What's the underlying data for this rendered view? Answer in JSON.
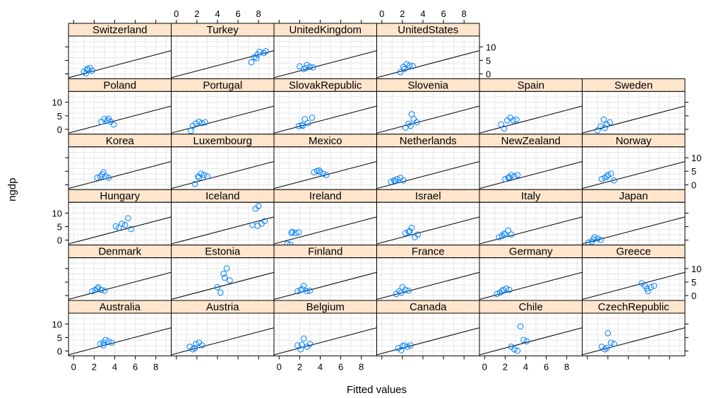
{
  "chart_data": {
    "type": "scatter",
    "xlabel": "Fitted values",
    "ylabel": "ngdp",
    "xlim": [
      -0.5,
      9.5
    ],
    "ylim": [
      -1.8,
      14
    ],
    "x_ticks": [
      0,
      2,
      4,
      6,
      8
    ],
    "y_ticks": [
      0,
      5,
      10
    ],
    "grid": true,
    "reference_line": {
      "intercept": -0.9,
      "slope": 1.0
    },
    "colors": {
      "points": "#0080ff",
      "strip": "#ffe5cc",
      "grid": "#e6e6e6",
      "line": "#000000"
    },
    "panels": [
      {
        "label": "Switzerland",
        "row": 0,
        "col": 0,
        "points": [
          [
            1.0,
            0.8
          ],
          [
            1.2,
            0.2
          ],
          [
            1.4,
            1.6
          ],
          [
            1.6,
            2.2
          ],
          [
            1.8,
            1.2
          ],
          [
            1.3,
            1.8
          ]
        ]
      },
      {
        "label": "Turkey",
        "row": 0,
        "col": 1,
        "points": [
          [
            7.3,
            4.3
          ],
          [
            7.6,
            6.2
          ],
          [
            7.9,
            7.2
          ],
          [
            8.1,
            8.2
          ],
          [
            8.5,
            7.7
          ],
          [
            8.7,
            8.4
          ],
          [
            7.8,
            5.8
          ]
        ]
      },
      {
        "label": "UnitedKingdom",
        "row": 0,
        "col": 2,
        "points": [
          [
            2.0,
            2.8
          ],
          [
            2.4,
            1.8
          ],
          [
            2.7,
            3.3
          ],
          [
            3.0,
            2.6
          ],
          [
            3.3,
            2.4
          ],
          [
            2.6,
            2.2
          ]
        ]
      },
      {
        "label": "UnitedStates",
        "row": 0,
        "col": 3,
        "points": [
          [
            1.8,
            0.6
          ],
          [
            2.1,
            2.6
          ],
          [
            2.4,
            3.6
          ],
          [
            2.7,
            3.1
          ],
          [
            3.0,
            2.9
          ],
          [
            2.2,
            1.8
          ]
        ]
      },
      {
        "label": "Poland",
        "row": 1,
        "col": 0,
        "points": [
          [
            2.7,
            2.8
          ],
          [
            3.0,
            3.8
          ],
          [
            3.3,
            3.3
          ],
          [
            3.6,
            2.8
          ],
          [
            3.9,
            1.8
          ],
          [
            3.4,
            4.0
          ]
        ]
      },
      {
        "label": "Portugal",
        "row": 1,
        "col": 1,
        "points": [
          [
            1.4,
            -0.6
          ],
          [
            1.6,
            1.3
          ],
          [
            1.9,
            2.2
          ],
          [
            2.2,
            2.8
          ],
          [
            2.5,
            2.3
          ],
          [
            2.8,
            2.6
          ]
        ]
      },
      {
        "label": "SlovakRepublic",
        "row": 1,
        "col": 2,
        "points": [
          [
            1.9,
            1.2
          ],
          [
            2.2,
            1.6
          ],
          [
            2.5,
            3.8
          ],
          [
            2.8,
            2.3
          ],
          [
            3.2,
            4.3
          ],
          [
            2.3,
            1.3
          ]
        ]
      },
      {
        "label": "Slovenia",
        "row": 1,
        "col": 3,
        "points": [
          [
            2.3,
            0.6
          ],
          [
            2.6,
            2.1
          ],
          [
            2.9,
            5.6
          ],
          [
            3.1,
            3.8
          ],
          [
            3.4,
            2.6
          ],
          [
            2.8,
            1.3
          ]
        ]
      },
      {
        "label": "Spain",
        "row": 1,
        "col": 4,
        "points": [
          [
            1.6,
            1.8
          ],
          [
            1.9,
            0.3
          ],
          [
            2.2,
            3.3
          ],
          [
            2.5,
            4.3
          ],
          [
            2.8,
            3.3
          ],
          [
            3.1,
            3.6
          ]
        ]
      },
      {
        "label": "Sweden",
        "row": 1,
        "col": 5,
        "points": [
          [
            1.0,
            -0.4
          ],
          [
            1.3,
            1.1
          ],
          [
            1.6,
            3.6
          ],
          [
            1.9,
            1.8
          ],
          [
            2.2,
            2.6
          ],
          [
            1.7,
            0.5
          ]
        ]
      },
      {
        "label": "Korea",
        "row": 2,
        "col": 0,
        "points": [
          [
            2.3,
            2.6
          ],
          [
            2.6,
            3.1
          ],
          [
            2.9,
            4.6
          ],
          [
            3.1,
            3.1
          ],
          [
            3.4,
            2.6
          ],
          [
            2.8,
            3.8
          ]
        ]
      },
      {
        "label": "Luxembourg",
        "row": 2,
        "col": 1,
        "points": [
          [
            1.8,
            0.3
          ],
          [
            2.1,
            3.1
          ],
          [
            2.4,
            4.1
          ],
          [
            2.7,
            3.6
          ],
          [
            3.0,
            3.1
          ],
          [
            2.2,
            2.6
          ]
        ]
      },
      {
        "label": "Mexico",
        "row": 2,
        "col": 2,
        "points": [
          [
            3.4,
            4.6
          ],
          [
            3.7,
            5.1
          ],
          [
            4.0,
            4.6
          ],
          [
            4.3,
            4.1
          ],
          [
            4.6,
            3.6
          ],
          [
            3.9,
            5.3
          ]
        ]
      },
      {
        "label": "Netherlands",
        "row": 2,
        "col": 3,
        "points": [
          [
            0.9,
            1.1
          ],
          [
            1.2,
            1.6
          ],
          [
            1.5,
            2.1
          ],
          [
            1.8,
            2.6
          ],
          [
            2.1,
            1.6
          ],
          [
            1.3,
            1.3
          ]
        ]
      },
      {
        "label": "NewZealand",
        "row": 2,
        "col": 4,
        "points": [
          [
            2.0,
            2.1
          ],
          [
            2.3,
            2.6
          ],
          [
            2.6,
            3.6
          ],
          [
            2.9,
            3.1
          ],
          [
            3.2,
            3.6
          ],
          [
            2.4,
            2.8
          ]
        ]
      },
      {
        "label": "Norway",
        "row": 2,
        "col": 5,
        "points": [
          [
            1.4,
            2.1
          ],
          [
            1.7,
            2.6
          ],
          [
            2.0,
            3.6
          ],
          [
            2.3,
            4.1
          ],
          [
            2.6,
            1.6
          ],
          [
            1.9,
            3.0
          ]
        ]
      },
      {
        "label": "Hungary",
        "row": 3,
        "col": 0,
        "points": [
          [
            4.1,
            5.1
          ],
          [
            4.4,
            4.6
          ],
          [
            4.7,
            6.1
          ],
          [
            5.0,
            5.6
          ],
          [
            5.3,
            8.1
          ],
          [
            5.6,
            4.1
          ]
        ]
      },
      {
        "label": "Iceland",
        "row": 3,
        "col": 1,
        "points": [
          [
            7.4,
            5.6
          ],
          [
            7.7,
            11.6
          ],
          [
            8.0,
            12.6
          ],
          [
            8.3,
            6.1
          ],
          [
            8.6,
            7.1
          ],
          [
            7.9,
            5.3
          ]
        ]
      },
      {
        "label": "Ireland",
        "row": 3,
        "col": 2,
        "points": [
          [
            0.8,
            -1.4
          ],
          [
            1.1,
            -1.6
          ],
          [
            1.3,
            3.1
          ],
          [
            1.6,
            2.6
          ],
          [
            1.9,
            2.9
          ],
          [
            1.2,
            2.7
          ]
        ]
      },
      {
        "label": "Israel",
        "row": 3,
        "col": 3,
        "points": [
          [
            2.3,
            2.6
          ],
          [
            2.6,
            3.1
          ],
          [
            2.9,
            4.6
          ],
          [
            3.2,
            1.1
          ],
          [
            3.5,
            2.1
          ],
          [
            2.7,
            3.3
          ]
        ]
      },
      {
        "label": "Italy",
        "row": 3,
        "col": 4,
        "points": [
          [
            1.4,
            1.1
          ],
          [
            1.7,
            1.6
          ],
          [
            2.0,
            2.1
          ],
          [
            2.3,
            3.6
          ],
          [
            2.6,
            2.1
          ],
          [
            1.9,
            2.4
          ]
        ]
      },
      {
        "label": "Japan",
        "row": 3,
        "col": 5,
        "points": [
          [
            0.1,
            -0.9
          ],
          [
            0.4,
            -0.6
          ],
          [
            0.7,
            1.1
          ],
          [
            1.0,
            0.6
          ],
          [
            1.3,
            0.1
          ],
          [
            0.6,
            0.3
          ]
        ]
      },
      {
        "label": "Denmark",
        "row": 4,
        "col": 0,
        "points": [
          [
            1.8,
            1.6
          ],
          [
            2.1,
            2.1
          ],
          [
            2.4,
            3.1
          ],
          [
            2.7,
            2.1
          ],
          [
            3.0,
            1.8
          ],
          [
            2.3,
            2.6
          ]
        ]
      },
      {
        "label": "Estonia",
        "row": 4,
        "col": 1,
        "points": [
          [
            4.0,
            3.1
          ],
          [
            4.3,
            1.1
          ],
          [
            4.6,
            8.1
          ],
          [
            4.9,
            10.1
          ],
          [
            5.2,
            5.6
          ],
          [
            4.7,
            6.6
          ]
        ]
      },
      {
        "label": "Finland",
        "row": 4,
        "col": 2,
        "points": [
          [
            1.8,
            1.6
          ],
          [
            2.1,
            2.1
          ],
          [
            2.4,
            3.6
          ],
          [
            2.7,
            1.6
          ],
          [
            3.0,
            1.8
          ],
          [
            2.3,
            2.3
          ]
        ]
      },
      {
        "label": "France",
        "row": 4,
        "col": 3,
        "points": [
          [
            1.4,
            0.6
          ],
          [
            1.7,
            1.6
          ],
          [
            2.0,
            3.1
          ],
          [
            2.3,
            2.1
          ],
          [
            2.6,
            1.8
          ],
          [
            1.9,
            1.1
          ]
        ]
      },
      {
        "label": "Germany",
        "row": 4,
        "col": 4,
        "points": [
          [
            1.2,
            0.6
          ],
          [
            1.5,
            1.1
          ],
          [
            1.8,
            2.1
          ],
          [
            2.1,
            2.6
          ],
          [
            2.4,
            2.1
          ],
          [
            1.7,
            1.6
          ]
        ]
      },
      {
        "label": "Greece",
        "row": 4,
        "col": 5,
        "points": [
          [
            5.3,
            4.6
          ],
          [
            5.6,
            3.6
          ],
          [
            5.9,
            1.6
          ],
          [
            6.2,
            3.1
          ],
          [
            6.5,
            3.6
          ],
          [
            5.8,
            2.6
          ]
        ]
      },
      {
        "label": "Australia",
        "row": 5,
        "col": 0,
        "points": [
          [
            2.6,
            2.6
          ],
          [
            2.9,
            3.1
          ],
          [
            3.1,
            4.1
          ],
          [
            3.4,
            3.6
          ],
          [
            3.7,
            3.1
          ],
          [
            2.9,
            2.1
          ]
        ]
      },
      {
        "label": "Austria",
        "row": 5,
        "col": 1,
        "points": [
          [
            1.3,
            1.6
          ],
          [
            1.6,
            0.6
          ],
          [
            1.9,
            2.6
          ],
          [
            2.2,
            3.1
          ],
          [
            2.5,
            2.1
          ],
          [
            1.8,
            1.1
          ]
        ]
      },
      {
        "label": "Belgium",
        "row": 5,
        "col": 2,
        "points": [
          [
            1.8,
            2.1
          ],
          [
            2.1,
            0.6
          ],
          [
            2.4,
            4.6
          ],
          [
            2.7,
            1.6
          ],
          [
            3.0,
            2.6
          ],
          [
            2.2,
            2.3
          ]
        ]
      },
      {
        "label": "Canada",
        "row": 5,
        "col": 3,
        "points": [
          [
            1.6,
            1.1
          ],
          [
            1.9,
            0.3
          ],
          [
            2.2,
            2.1
          ],
          [
            2.5,
            1.6
          ],
          [
            2.8,
            2.1
          ],
          [
            2.0,
            1.8
          ]
        ]
      },
      {
        "label": "Chile",
        "row": 5,
        "col": 4,
        "points": [
          [
            2.6,
            1.6
          ],
          [
            2.9,
            0.6
          ],
          [
            3.2,
            0.1
          ],
          [
            3.5,
            9.1
          ],
          [
            3.8,
            4.1
          ],
          [
            4.1,
            3.6
          ]
        ]
      },
      {
        "label": "CzechRepublic",
        "row": 5,
        "col": 5,
        "points": [
          [
            1.4,
            1.6
          ],
          [
            1.7,
            0.6
          ],
          [
            2.0,
            6.6
          ],
          [
            2.3,
            3.1
          ],
          [
            2.6,
            2.6
          ],
          [
            1.9,
            1.1
          ]
        ]
      }
    ]
  }
}
